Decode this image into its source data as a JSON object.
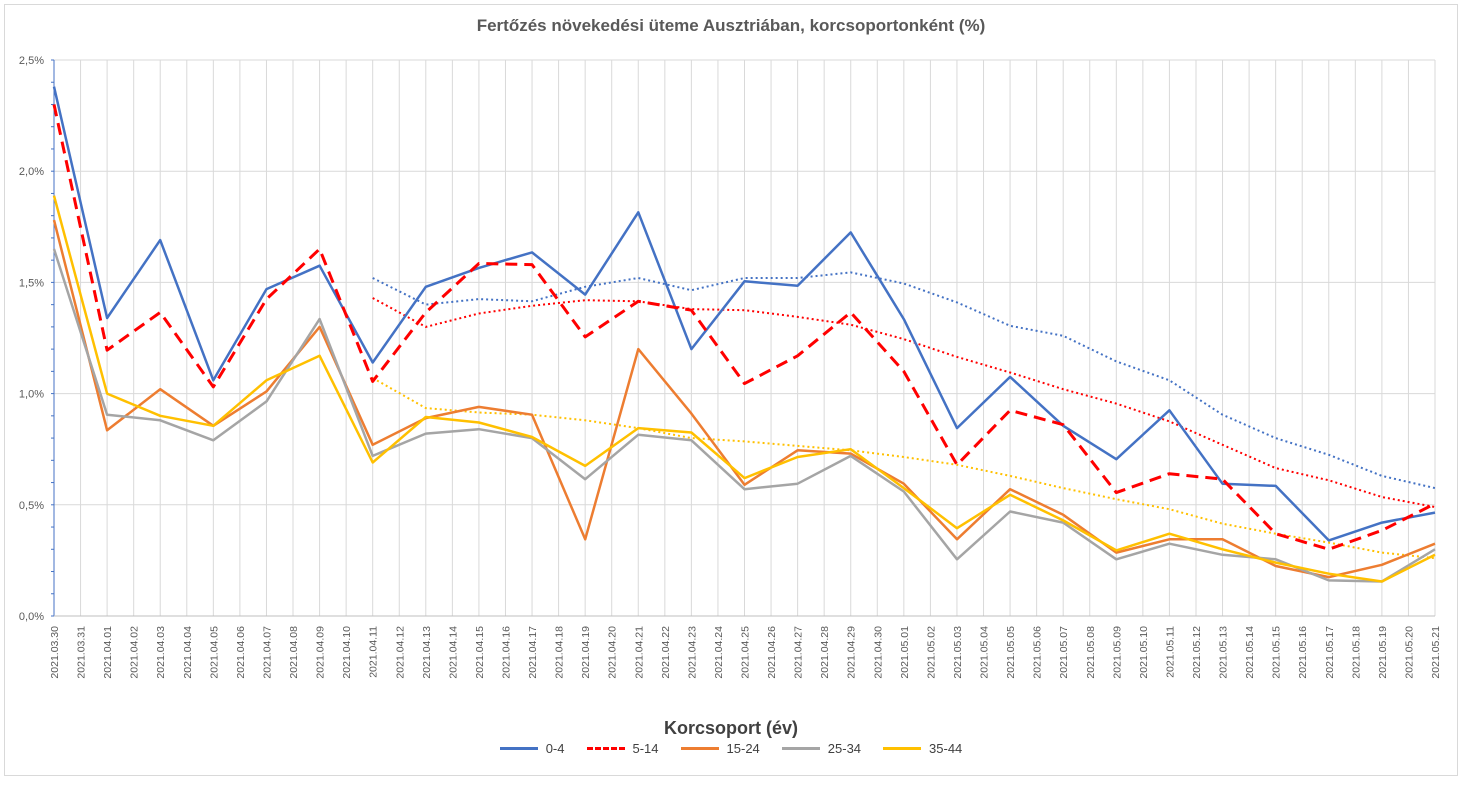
{
  "chart_data": {
    "type": "line",
    "title": "Fertőzés növekedési üteme Ausztriában, korcsoportonként (%)",
    "legend_title": "Korcsoport (év)",
    "legend_position": "bottom",
    "grid": true,
    "ylim": [
      0,
      2.5
    ],
    "yticks": [
      "0,0%",
      "0,5%",
      "1,0%",
      "1,5%",
      "2,0%",
      "2,5%"
    ],
    "categories": [
      "2021.03.30",
      "2021.03.31",
      "2021.04.01",
      "2021.04.02",
      "2021.04.03",
      "2021.04.04",
      "2021.04.05",
      "2021.04.06",
      "2021.04.07",
      "2021.04.08",
      "2021.04.09",
      "2021.04.10",
      "2021.04.11",
      "2021.04.12",
      "2021.04.13",
      "2021.04.14",
      "2021.04.15",
      "2021.04.16",
      "2021.04.17",
      "2021.04.18",
      "2021.04.19",
      "2021.04.20",
      "2021.04.21",
      "2021.04.22",
      "2021.04.23",
      "2021.04.24",
      "2021.04.25",
      "2021.04.26",
      "2021.04.27",
      "2021.04.28",
      "2021.04.29",
      "2021.04.30",
      "2021.05.01",
      "2021.05.02",
      "2021.05.03",
      "2021.05.04",
      "2021.05.05",
      "2021.05.06",
      "2021.05.07",
      "2021.05.08",
      "2021.05.09",
      "2021.05.10",
      "2021.05.11",
      "2021.05.12",
      "2021.05.13",
      "2021.05.14",
      "2021.05.15",
      "2021.05.16",
      "2021.05.17",
      "2021.05.18",
      "2021.05.19",
      "2021.05.20",
      "2021.05.21"
    ],
    "series": [
      {
        "name": "0-4",
        "color": "#4472c4",
        "dash": "solid",
        "values": [
          [
            0,
            2.38
          ],
          [
            2,
            1.34
          ],
          [
            4,
            1.69
          ],
          [
            6,
            1.06
          ],
          [
            8,
            1.47
          ],
          [
            10,
            1.575
          ],
          [
            12,
            1.14
          ],
          [
            14,
            1.48
          ],
          [
            16,
            1.565
          ],
          [
            18,
            1.635
          ],
          [
            20,
            1.445
          ],
          [
            22,
            1.815
          ],
          [
            24,
            1.2
          ],
          [
            26,
            1.505
          ],
          [
            28,
            1.485
          ],
          [
            30,
            1.725
          ],
          [
            32,
            1.335
          ],
          [
            34,
            0.845
          ],
          [
            36,
            1.075
          ],
          [
            38,
            0.855
          ],
          [
            40,
            0.705
          ],
          [
            42,
            0.925
          ],
          [
            44,
            0.595
          ],
          [
            46,
            0.585
          ],
          [
            48,
            0.34
          ],
          [
            50,
            0.42
          ],
          [
            52,
            0.465
          ]
        ]
      },
      {
        "name": "5-14",
        "color": "#ff0000",
        "dash": "dashed",
        "values": [
          [
            0,
            2.3
          ],
          [
            2,
            1.195
          ],
          [
            4,
            1.365
          ],
          [
            6,
            1.03
          ],
          [
            8,
            1.425
          ],
          [
            10,
            1.65
          ],
          [
            12,
            1.055
          ],
          [
            14,
            1.365
          ],
          [
            16,
            1.585
          ],
          [
            18,
            1.58
          ],
          [
            20,
            1.255
          ],
          [
            22,
            1.415
          ],
          [
            24,
            1.375
          ],
          [
            26,
            1.045
          ],
          [
            28,
            1.17
          ],
          [
            30,
            1.365
          ],
          [
            32,
            1.1
          ],
          [
            34,
            0.68
          ],
          [
            36,
            0.925
          ],
          [
            38,
            0.86
          ],
          [
            40,
            0.555
          ],
          [
            42,
            0.64
          ],
          [
            44,
            0.615
          ],
          [
            46,
            0.37
          ],
          [
            48,
            0.3
          ],
          [
            50,
            0.385
          ],
          [
            52,
            0.505
          ]
        ]
      },
      {
        "name": "15-24",
        "color": "#ed7d31",
        "dash": "solid",
        "values": [
          [
            0,
            1.78
          ],
          [
            2,
            0.835
          ],
          [
            4,
            1.02
          ],
          [
            6,
            0.855
          ],
          [
            8,
            1.01
          ],
          [
            10,
            1.3
          ],
          [
            12,
            0.77
          ],
          [
            14,
            0.89
          ],
          [
            16,
            0.94
          ],
          [
            18,
            0.905
          ],
          [
            20,
            0.345
          ],
          [
            22,
            1.2
          ],
          [
            24,
            0.91
          ],
          [
            26,
            0.59
          ],
          [
            28,
            0.745
          ],
          [
            30,
            0.73
          ],
          [
            32,
            0.595
          ],
          [
            34,
            0.345
          ],
          [
            36,
            0.57
          ],
          [
            38,
            0.455
          ],
          [
            40,
            0.285
          ],
          [
            42,
            0.345
          ],
          [
            44,
            0.345
          ],
          [
            46,
            0.225
          ],
          [
            48,
            0.175
          ],
          [
            50,
            0.23
          ],
          [
            52,
            0.325
          ]
        ]
      },
      {
        "name": "25-34",
        "color": "#a5a5a5",
        "dash": "solid",
        "values": [
          [
            0,
            1.65
          ],
          [
            2,
            0.905
          ],
          [
            4,
            0.88
          ],
          [
            6,
            0.79
          ],
          [
            8,
            0.965
          ],
          [
            10,
            1.335
          ],
          [
            12,
            0.72
          ],
          [
            14,
            0.82
          ],
          [
            16,
            0.84
          ],
          [
            18,
            0.8
          ],
          [
            20,
            0.615
          ],
          [
            22,
            0.815
          ],
          [
            24,
            0.79
          ],
          [
            26,
            0.57
          ],
          [
            28,
            0.595
          ],
          [
            30,
            0.72
          ],
          [
            32,
            0.56
          ],
          [
            34,
            0.255
          ],
          [
            36,
            0.47
          ],
          [
            38,
            0.42
          ],
          [
            40,
            0.255
          ],
          [
            42,
            0.325
          ],
          [
            44,
            0.275
          ],
          [
            46,
            0.255
          ],
          [
            48,
            0.16
          ],
          [
            50,
            0.155
          ],
          [
            52,
            0.3
          ]
        ]
      },
      {
        "name": "35-44",
        "color": "#ffc000",
        "dash": "solid",
        "values": [
          [
            0,
            1.89
          ],
          [
            2,
            1.0
          ],
          [
            4,
            0.9
          ],
          [
            6,
            0.855
          ],
          [
            8,
            1.06
          ],
          [
            10,
            1.17
          ],
          [
            12,
            0.69
          ],
          [
            14,
            0.895
          ],
          [
            16,
            0.87
          ],
          [
            18,
            0.805
          ],
          [
            20,
            0.675
          ],
          [
            22,
            0.845
          ],
          [
            24,
            0.825
          ],
          [
            26,
            0.62
          ],
          [
            28,
            0.715
          ],
          [
            30,
            0.75
          ],
          [
            32,
            0.575
          ],
          [
            34,
            0.395
          ],
          [
            36,
            0.545
          ],
          [
            38,
            0.43
          ],
          [
            40,
            0.295
          ],
          [
            42,
            0.37
          ],
          [
            44,
            0.3
          ],
          [
            46,
            0.24
          ],
          [
            48,
            0.19
          ],
          [
            50,
            0.155
          ],
          [
            52,
            0.275
          ]
        ]
      }
    ],
    "trendlines": [
      {
        "series": "0-4",
        "color": "#4472c4",
        "dash": "dotted",
        "values": [
          [
            12,
            1.52
          ],
          [
            14,
            1.4
          ],
          [
            16,
            1.425
          ],
          [
            18,
            1.415
          ],
          [
            20,
            1.48
          ],
          [
            22,
            1.52
          ],
          [
            24,
            1.465
          ],
          [
            26,
            1.52
          ],
          [
            28,
            1.52
          ],
          [
            30,
            1.545
          ],
          [
            32,
            1.495
          ],
          [
            34,
            1.41
          ],
          [
            36,
            1.305
          ],
          [
            38,
            1.26
          ],
          [
            40,
            1.145
          ],
          [
            42,
            1.06
          ],
          [
            44,
            0.905
          ],
          [
            46,
            0.8
          ],
          [
            48,
            0.725
          ],
          [
            50,
            0.63
          ],
          [
            52,
            0.575
          ]
        ]
      },
      {
        "series": "5-14",
        "color": "#ff0000",
        "dash": "dotted",
        "values": [
          [
            12,
            1.43
          ],
          [
            14,
            1.3
          ],
          [
            16,
            1.36
          ],
          [
            18,
            1.395
          ],
          [
            20,
            1.42
          ],
          [
            22,
            1.415
          ],
          [
            24,
            1.38
          ],
          [
            26,
            1.375
          ],
          [
            28,
            1.345
          ],
          [
            30,
            1.31
          ],
          [
            32,
            1.245
          ],
          [
            34,
            1.165
          ],
          [
            36,
            1.095
          ],
          [
            38,
            1.02
          ],
          [
            40,
            0.955
          ],
          [
            42,
            0.875
          ],
          [
            44,
            0.77
          ],
          [
            46,
            0.665
          ],
          [
            48,
            0.61
          ],
          [
            50,
            0.535
          ],
          [
            52,
            0.49
          ]
        ]
      },
      {
        "series": "35-44",
        "color": "#ffc000",
        "dash": "dotted",
        "values": [
          [
            12,
            1.07
          ],
          [
            14,
            0.935
          ],
          [
            16,
            0.915
          ],
          [
            18,
            0.905
          ],
          [
            20,
            0.88
          ],
          [
            22,
            0.845
          ],
          [
            24,
            0.8
          ],
          [
            26,
            0.785
          ],
          [
            28,
            0.765
          ],
          [
            30,
            0.745
          ],
          [
            32,
            0.715
          ],
          [
            34,
            0.68
          ],
          [
            36,
            0.63
          ],
          [
            38,
            0.575
          ],
          [
            40,
            0.525
          ],
          [
            42,
            0.48
          ],
          [
            44,
            0.415
          ],
          [
            46,
            0.37
          ],
          [
            48,
            0.33
          ],
          [
            50,
            0.285
          ],
          [
            52,
            0.26
          ]
        ]
      }
    ]
  }
}
